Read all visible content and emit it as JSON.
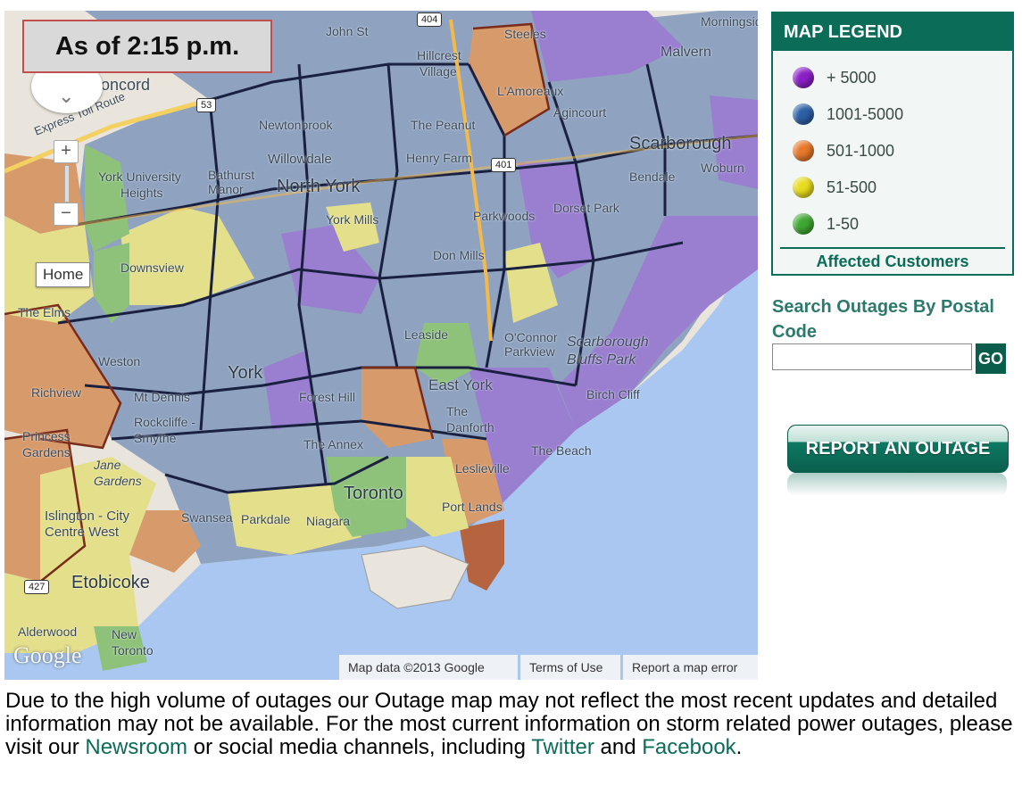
{
  "timestamp": "As of 2:15 p.m.",
  "map": {
    "labels": {
      "steeles": "Steeles",
      "concord": "Concord",
      "express_toll": "Express Toll Route",
      "hillcrest": "Hillcrest",
      "village": "Village",
      "john_st": "John St",
      "malvern": "Malvern",
      "lamoreaux": "L'Amoreaux",
      "agincourt": "Agincourt",
      "the_peanut": "The Peanut",
      "newtonbrook": "Newtonbrook",
      "willowdale": "Willowdale",
      "henry_farm": "Henry Farm",
      "scarborough": "Scarborough",
      "woburn": "Woburn",
      "bendale": "Bendale",
      "north_york": "North York",
      "york_university": "York University",
      "heights": "Heights",
      "bathurst_manor": "Bathurst Manor",
      "york_mills": "York Mills",
      "parkwoods": "Parkwoods",
      "dorset_park": "Dorset Park",
      "downsview": "Downsview",
      "don_mills": "Don Mills",
      "the_elms": "The Elms",
      "weston": "Weston",
      "york": "York",
      "leaside": "Leaside",
      "oconnor_parkview": "O'Connor Parkview",
      "scarborough_bluffs_park": "Scarborough Bluffs Park",
      "richview": "Richview",
      "mt_dennis": "Mt Dennis",
      "forest_hill": "Forest Hill",
      "east_york": "East York",
      "birch_cliff": "Birch Cliff",
      "rockcliffe_smythe": "Rockcliffe - Smythe",
      "the_danforth": "The Danforth",
      "princess_gardens": "Princess Gardens",
      "the_annex": "The Annex",
      "the_beach": "The Beach",
      "leslieville": "Leslieville",
      "islington_city_centre_west": "Islington - City Centre West",
      "swansea": "Swansea",
      "parkdale": "Parkdale",
      "niagara": "Niagara",
      "toronto": "Toronto",
      "port_lands": "Port Lands",
      "etobicoke": "Etobicoke",
      "alderwood": "Alderwood",
      "new_toronto": "New Toronto",
      "jane_gardens": "Jane Gardens",
      "morningside": "Morningside"
    },
    "shields": {
      "s404": "404",
      "s53": "53",
      "s401": "401",
      "s427": "427"
    },
    "home_label": "Home",
    "google_logo": "Google",
    "footer": {
      "map_data": "Map data ©2013 Google",
      "terms": "Terms of Use",
      "report_error": "Report a map error"
    }
  },
  "legend": {
    "title": "MAP LEGEND",
    "items": [
      {
        "label": "+ 5000",
        "color": "#8b1fc7"
      },
      {
        "label": "1001-5000",
        "color": "#2b5fa6"
      },
      {
        "label": "501-1000",
        "color": "#e8782a"
      },
      {
        "label": "51-500",
        "color": "#e8dc1e"
      },
      {
        "label": "1-50",
        "color": "#3fa832"
      }
    ],
    "footer": "Affected Customers"
  },
  "search": {
    "label": "Search Outages By Postal Code",
    "placeholder": "",
    "go_label": "GO"
  },
  "report_button": "REPORT AN OUTAGE",
  "notice": {
    "text_1": "Due to the high volume of outages our Outage map may not reflect the most recent updates and detailed information may not be available. For the most current information on storm related power outages, please visit our ",
    "link_newsroom": "Newsroom",
    "text_2": " or social media channels, including ",
    "link_twitter": "Twitter",
    "text_3": " and ",
    "link_facebook": "Facebook",
    "text_4": "."
  },
  "colors": {
    "brand_green": "#0b6c58",
    "lake": "#a9c7f0",
    "region_purple": "#9a7fd0",
    "region_blue": "#8a9fbd",
    "region_orange": "#d79a6a",
    "region_yellow": "#e4df8a",
    "region_green": "#8ec27a"
  }
}
